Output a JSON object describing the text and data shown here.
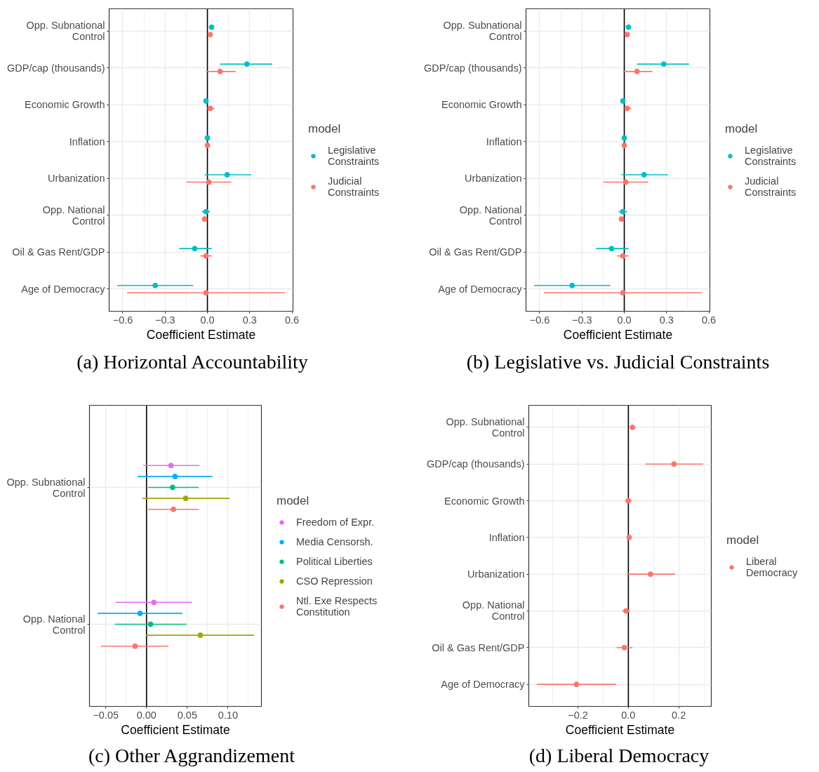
{
  "chart_data": [
    {
      "type": "scatter",
      "orientation": "horizontal",
      "title": "(a) Horizontal Accountability",
      "xlabel": "Coefficient Estimate",
      "legend_title": "model",
      "legend": "right",
      "marker": "circle",
      "grid": true,
      "categories": [
        "Opp. Subnational\nControl",
        "GDP/cap (thousands)",
        "Economic Growth",
        "Inflation",
        "Urbanization",
        "Opp. National\nControl",
        "Oil & Gas Rent/GDP",
        "Age of Democracy"
      ],
      "series": [
        {
          "name": "Legislative\nConstraints",
          "color": "#00bfc4",
          "values": [
            0.03,
            0.28,
            -0.01,
            0.0,
            0.14,
            -0.01,
            -0.09,
            -0.37
          ],
          "errors": [
            null,
            [
              0.09,
              0.46
            ],
            null,
            null,
            [
              -0.02,
              0.31
            ],
            [
              -0.04,
              0.02
            ],
            [
              -0.2,
              0.03
            ],
            [
              -0.64,
              -0.1
            ]
          ]
        },
        {
          "name": "Judicial\nConstraints",
          "color": "#f8766d",
          "values": [
            0.02,
            0.09,
            0.02,
            0.0,
            0.01,
            -0.02,
            -0.01,
            -0.01
          ],
          "errors": [
            null,
            [
              -0.01,
              0.2
            ],
            [
              0.0,
              0.05
            ],
            null,
            [
              -0.15,
              0.17
            ],
            null,
            [
              -0.05,
              0.03
            ],
            [
              -0.57,
              0.55
            ]
          ]
        }
      ],
      "xlim": [
        -0.697,
        0.607
      ],
      "xticks": [
        {
          "value": -0.6,
          "label": "−0.6"
        },
        {
          "value": -0.3,
          "label": "−0.3"
        },
        {
          "value": 0,
          "label": "0.0"
        },
        0.3,
        0.6
      ],
      "ref_lines": [
        {
          "axis": "x",
          "value": 0,
          "color": "#000000"
        }
      ]
    },
    {
      "type": "scatter",
      "orientation": "horizontal",
      "title": "(b) Legislative vs. Judicial Constraints",
      "xlabel": "Coefficient Estimate",
      "legend_title": "model",
      "legend": "right",
      "marker": "circle",
      "grid": true,
      "categories": [
        "Opp. Subnational\nControl",
        "GDP/cap (thousands)",
        "Economic Growth",
        "Inflation",
        "Urbanization",
        "Opp. National\nControl",
        "Oil & Gas Rent/GDP",
        "Age of Democracy"
      ],
      "series": [
        {
          "name": "Legislative\nConstraints",
          "color": "#00bfc4",
          "values": [
            0.03,
            0.28,
            -0.01,
            0.0,
            0.14,
            -0.01,
            -0.09,
            -0.37
          ],
          "errors": [
            null,
            [
              0.09,
              0.46
            ],
            null,
            null,
            [
              -0.02,
              0.31
            ],
            [
              -0.04,
              0.02
            ],
            [
              -0.2,
              0.03
            ],
            [
              -0.64,
              -0.1
            ]
          ]
        },
        {
          "name": "Judicial\nConstraints",
          "color": "#f8766d",
          "values": [
            0.02,
            0.09,
            0.02,
            0.0,
            0.01,
            -0.02,
            -0.01,
            -0.01
          ],
          "errors": [
            null,
            [
              -0.01,
              0.2
            ],
            [
              0.0,
              0.05
            ],
            null,
            [
              -0.15,
              0.17
            ],
            null,
            [
              -0.05,
              0.03
            ],
            [
              -0.57,
              0.55
            ]
          ]
        }
      ],
      "xlim": [
        -0.697,
        0.607
      ],
      "xticks": [
        {
          "value": -0.6,
          "label": "−0.6"
        },
        {
          "value": -0.3,
          "label": "−0.3"
        },
        {
          "value": 0,
          "label": "0.0"
        },
        0.3,
        0.6
      ],
      "ref_lines": [
        {
          "axis": "x",
          "value": 0,
          "color": "#000000"
        }
      ]
    },
    {
      "type": "scatter",
      "orientation": "horizontal",
      "title": "(c) Other Aggrandizement",
      "xlabel": "Coefficient Estimate",
      "legend_title": "model",
      "legend": "right",
      "marker": "circle",
      "grid": true,
      "categories": [
        "Opp. Subnational\nControl",
        "Opp. National\nControl"
      ],
      "series": [
        {
          "name": "Freedom of Expr.",
          "color": "#e76bf3",
          "values": [
            0.03,
            0.009
          ],
          "errors": [
            [
              -0.004,
              0.065
            ],
            [
              -0.038,
              0.056
            ]
          ]
        },
        {
          "name": "Media Censorsh.",
          "color": "#00b0f6",
          "values": [
            0.035,
            -0.008
          ],
          "errors": [
            [
              -0.011,
              0.081
            ],
            [
              -0.06,
              0.044
            ]
          ]
        },
        {
          "name": "Political Liberties",
          "color": "#00bf7d",
          "values": [
            0.032,
            0.005
          ],
          "errors": [
            [
              0.002,
              0.064
            ],
            [
              -0.039,
              0.049
            ]
          ]
        },
        {
          "name": "CSO Repression",
          "color": "#a3a500",
          "values": [
            0.048,
            0.066
          ],
          "errors": [
            [
              -0.005,
              0.102
            ],
            [
              -0.001,
              0.132
            ]
          ]
        },
        {
          "name": "Ntl. Exe Respects\nConstitution",
          "color": "#f8766d",
          "values": [
            0.033,
            -0.014
          ],
          "errors": [
            [
              0.002,
              0.064
            ],
            [
              -0.056,
              0.027
            ]
          ]
        }
      ],
      "xlim": [
        -0.07,
        0.141
      ],
      "xticks": [
        {
          "value": -0.05,
          "label": "−0.05"
        },
        {
          "value": 0,
          "label": "0.00"
        },
        0.05,
        {
          "value": 0.1,
          "label": "0.10"
        }
      ],
      "ref_lines": [
        {
          "axis": "x",
          "value": 0,
          "color": "#000000"
        }
      ]
    },
    {
      "type": "scatter",
      "orientation": "horizontal",
      "title": "(d) Liberal Democracy",
      "xlabel": "Coefficient Estimate",
      "legend_title": "model",
      "legend": "right",
      "marker": "circle",
      "grid": true,
      "categories": [
        "Opp. Subnational\nControl",
        "GDP/cap (thousands)",
        "Economic Growth",
        "Inflation",
        "Urbanization",
        "Opp. National\nControl",
        "Oil & Gas Rent/GDP",
        "Age of Democracy"
      ],
      "series": [
        {
          "name": "Liberal\nDemocracy",
          "color": "#f8766d",
          "values": [
            0.016,
            0.181,
            0.0,
            0.003,
            0.088,
            -0.009,
            -0.016,
            -0.206
          ],
          "errors": [
            [
              0.007,
              0.029
            ],
            [
              0.067,
              0.296
            ],
            [
              -0.014,
              0.015
            ],
            null,
            [
              -0.006,
              0.185
            ],
            [
              -0.024,
              0.007
            ],
            [
              -0.047,
              0.016
            ],
            [
              -0.363,
              -0.048
            ]
          ]
        }
      ],
      "xlim": [
        -0.395,
        0.329
      ],
      "xticks": [
        {
          "value": -0.2,
          "label": "−0.2"
        },
        {
          "value": 0,
          "label": "0.0"
        },
        0.2
      ],
      "ref_lines": [
        {
          "axis": "x",
          "value": 0,
          "color": "#000000"
        }
      ]
    }
  ]
}
